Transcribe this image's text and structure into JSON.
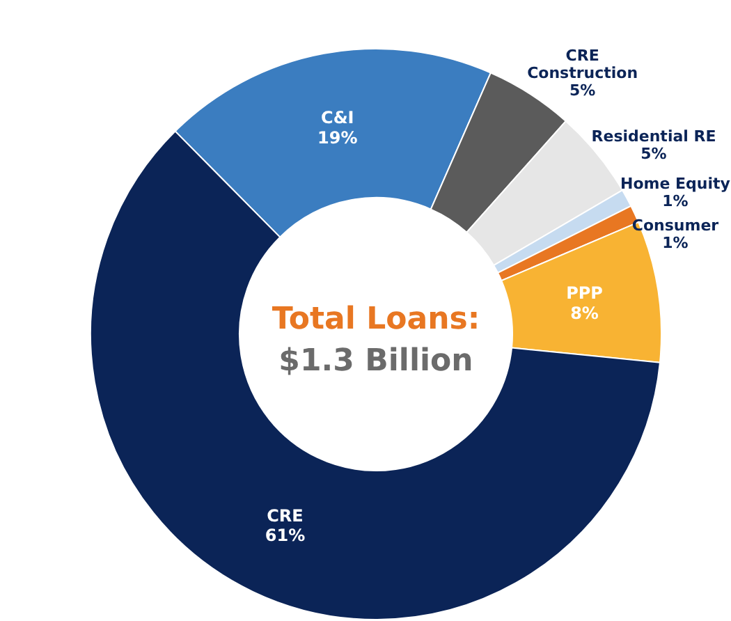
{
  "chart_data": {
    "type": "donut",
    "title": "Total Loans:",
    "subtitle": "$1.3 Billion",
    "categories": [
      "C&I",
      "CRE Construction",
      "Residential RE",
      "Home Equity",
      "Consumer",
      "PPP",
      "CRE"
    ],
    "values": [
      19,
      5,
      5,
      1,
      1,
      8,
      61
    ],
    "colors": [
      "#3b7dc0",
      "#5b5b5b",
      "#e6e6e6",
      "#c6dbf0",
      "#e87722",
      "#f8b333",
      "#0b2457"
    ],
    "value_labels": [
      "19%",
      "5%",
      "5%",
      "1%",
      "1%",
      "8%",
      "61%"
    ]
  }
}
